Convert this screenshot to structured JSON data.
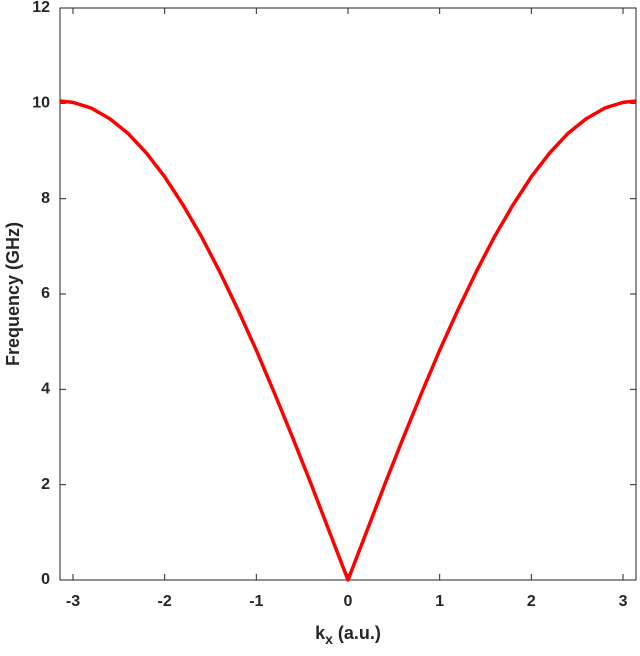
{
  "chart_data": {
    "type": "line",
    "ylabel": "Frequency (GHz)",
    "xlabel": [
      "k",
      "x",
      " (a.u.)"
    ],
    "x": [
      -3.1416,
      -3.0,
      -2.8,
      -2.6,
      -2.4,
      -2.2,
      -2.0,
      -1.8,
      -1.6,
      -1.4,
      -1.2,
      -1.0,
      -0.8,
      -0.6,
      -0.4,
      -0.2,
      0,
      0.2,
      0.4,
      0.6,
      0.8,
      1.0,
      1.2,
      1.4,
      1.6,
      1.8,
      2.0,
      2.2,
      2.4,
      2.6,
      2.8,
      3.0,
      3.1416
    ],
    "series": [
      {
        "color": "#ff0000",
        "values": [
          10.05,
          10.02,
          9.9,
          9.68,
          9.37,
          8.96,
          8.46,
          7.87,
          7.21,
          6.47,
          5.67,
          4.82,
          3.91,
          2.97,
          2.0,
          1.0,
          0,
          1.0,
          2.0,
          2.97,
          3.91,
          4.82,
          5.67,
          6.47,
          7.21,
          7.87,
          8.46,
          8.96,
          9.37,
          9.68,
          9.9,
          10.02,
          10.05
        ]
      }
    ],
    "xlim": [
      -3.1416,
      3.1416
    ],
    "xticks": [
      -3,
      -2,
      -1,
      0,
      1,
      2,
      3
    ],
    "ylim": [
      0,
      12
    ],
    "yticks": [
      0,
      2,
      4,
      6,
      8,
      10,
      12
    ]
  }
}
